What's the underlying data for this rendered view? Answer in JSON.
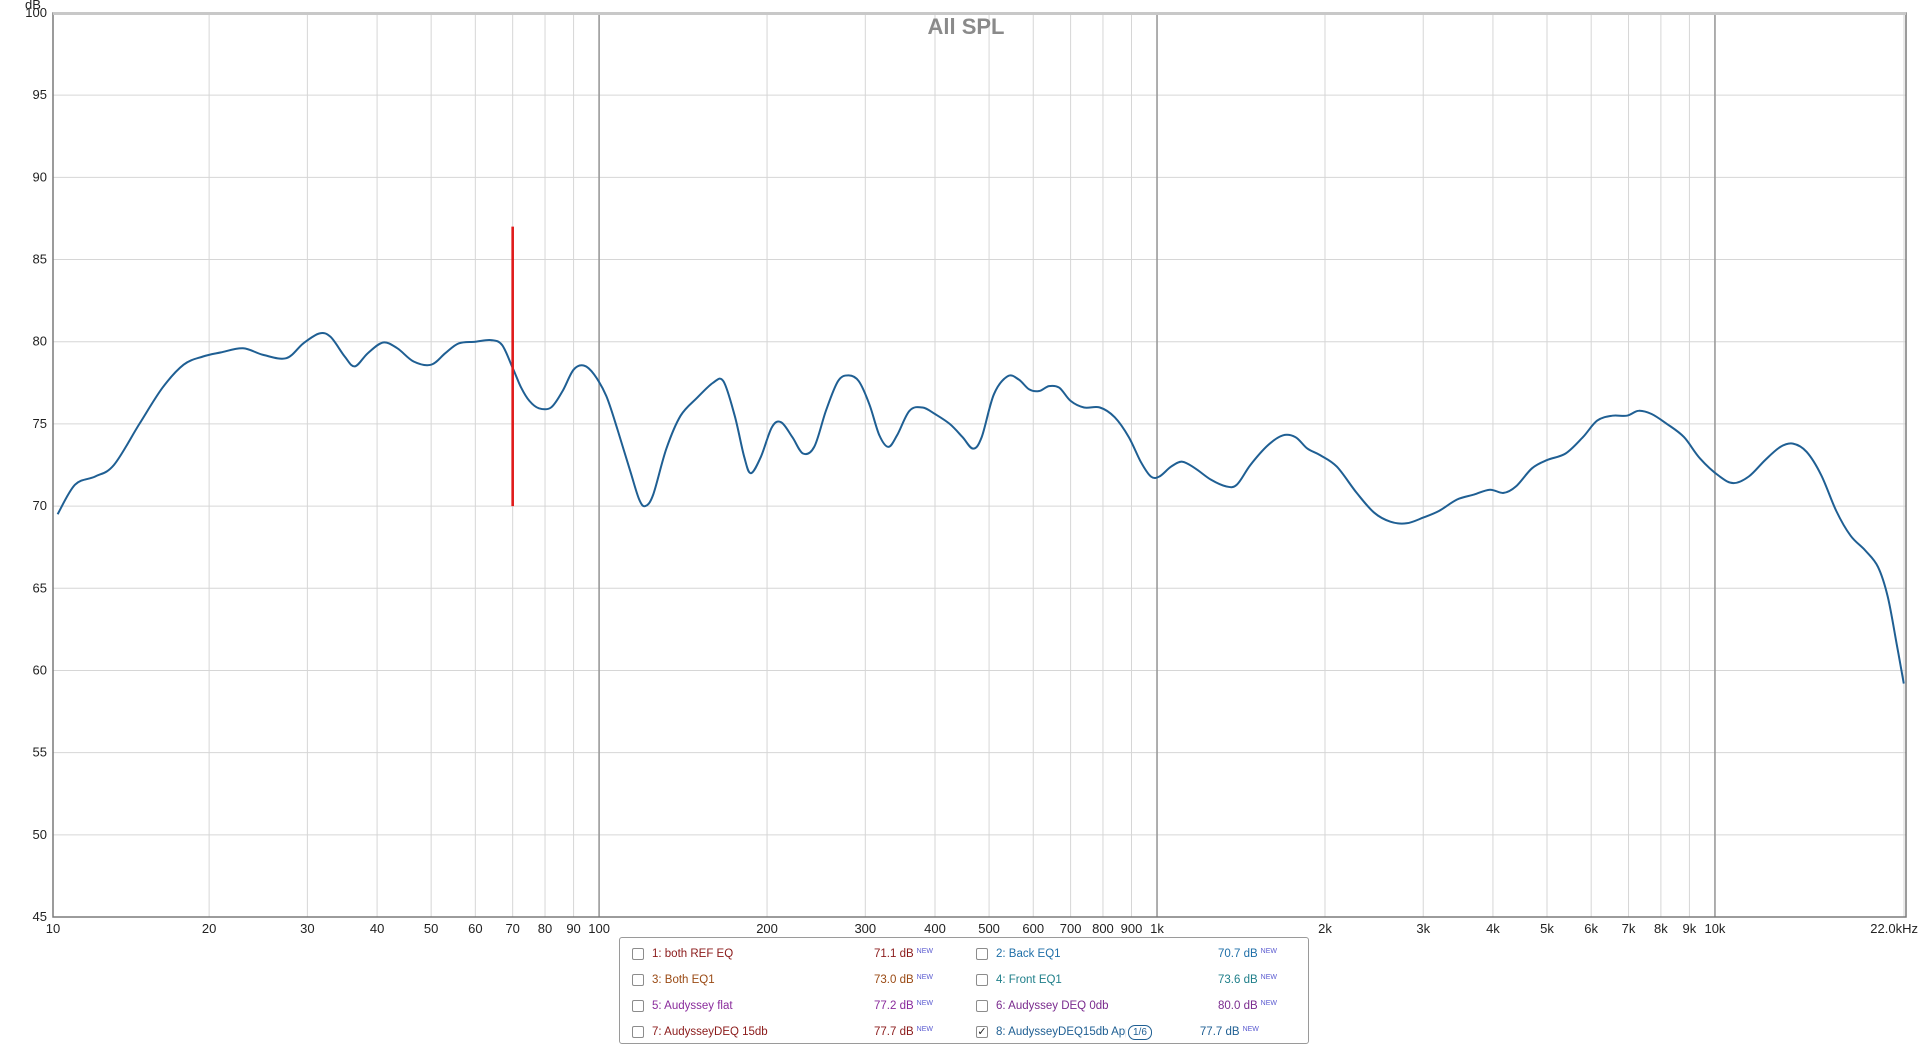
{
  "chart_data": {
    "type": "line",
    "title": "All SPL",
    "ylabel": "dB",
    "xlabel": "",
    "x_scale": "log",
    "xlim": [
      10.5,
      22000
    ],
    "ylim": [
      45,
      100
    ],
    "grid": true,
    "y_ticks": [
      45,
      50,
      55,
      60,
      65,
      70,
      75,
      80,
      85,
      90,
      95,
      100
    ],
    "x_ticks": [
      {
        "value": 10.5,
        "label": "10"
      },
      {
        "value": 20,
        "label": "20"
      },
      {
        "value": 30,
        "label": "30"
      },
      {
        "value": 40,
        "label": "40"
      },
      {
        "value": 50,
        "label": "50"
      },
      {
        "value": 60,
        "label": "60"
      },
      {
        "value": 70,
        "label": "70"
      },
      {
        "value": 80,
        "label": "80"
      },
      {
        "value": 90,
        "label": "90"
      },
      {
        "value": 100,
        "label": "100"
      },
      {
        "value": 200,
        "label": "200"
      },
      {
        "value": 300,
        "label": "300"
      },
      {
        "value": 400,
        "label": "400"
      },
      {
        "value": 500,
        "label": "500"
      },
      {
        "value": 600,
        "label": "600"
      },
      {
        "value": 700,
        "label": "700"
      },
      {
        "value": 800,
        "label": "800"
      },
      {
        "value": 900,
        "label": "900"
      },
      {
        "value": 1000,
        "label": "1k"
      },
      {
        "value": 2000,
        "label": "2k"
      },
      {
        "value": 3000,
        "label": "3k"
      },
      {
        "value": 4000,
        "label": "4k"
      },
      {
        "value": 5000,
        "label": "5k"
      },
      {
        "value": 6000,
        "label": "6k"
      },
      {
        "value": 7000,
        "label": "7k"
      },
      {
        "value": 8000,
        "label": "8k"
      },
      {
        "value": 9000,
        "label": "9k"
      },
      {
        "value": 10000,
        "label": "10k"
      },
      {
        "value": 22000,
        "label": "22.0kHz"
      }
    ],
    "major_x_gridlines": [
      100,
      1000,
      10000
    ],
    "marker": {
      "x": 70,
      "y_from": 70,
      "y_to": 87,
      "color": "#e01b1b"
    },
    "series": [
      {
        "name": "8: AudysseyDEQ15db App",
        "color": "#1f5f93",
        "points": [
          [
            10.7,
            69.5
          ],
          [
            11.5,
            71.3
          ],
          [
            12.5,
            71.8
          ],
          [
            13.5,
            72.5
          ],
          [
            15,
            75.0
          ],
          [
            16.5,
            77.2
          ],
          [
            18,
            78.6
          ],
          [
            19.5,
            79.1
          ],
          [
            21,
            79.35
          ],
          [
            23,
            79.6
          ],
          [
            25,
            79.2
          ],
          [
            27.5,
            79.0
          ],
          [
            29.5,
            79.9
          ],
          [
            31.5,
            80.5
          ],
          [
            33,
            80.3
          ],
          [
            35,
            79.1
          ],
          [
            36.5,
            78.5
          ],
          [
            38.5,
            79.3
          ],
          [
            41,
            79.95
          ],
          [
            43.5,
            79.6
          ],
          [
            46.5,
            78.8
          ],
          [
            50,
            78.6
          ],
          [
            53,
            79.3
          ],
          [
            56,
            79.9
          ],
          [
            60,
            80.0
          ],
          [
            64,
            80.1
          ],
          [
            67,
            79.8
          ],
          [
            70,
            78.4
          ],
          [
            72.5,
            77.2
          ],
          [
            75,
            76.4
          ],
          [
            78,
            75.95
          ],
          [
            82,
            76.0
          ],
          [
            86,
            77.0
          ],
          [
            90,
            78.3
          ],
          [
            94,
            78.55
          ],
          [
            98,
            78.0
          ],
          [
            103,
            76.7
          ],
          [
            108,
            74.6
          ],
          [
            114,
            72.0
          ],
          [
            118,
            70.4
          ],
          [
            121,
            70.0
          ],
          [
            125,
            70.7
          ],
          [
            132,
            73.5
          ],
          [
            140,
            75.5
          ],
          [
            150,
            76.6
          ],
          [
            160,
            77.5
          ],
          [
            167,
            77.6
          ],
          [
            175,
            75.5
          ],
          [
            182,
            73.0
          ],
          [
            187,
            72.0
          ],
          [
            195,
            73.0
          ],
          [
            204,
            74.8
          ],
          [
            212,
            75.1
          ],
          [
            222,
            74.2
          ],
          [
            232,
            73.2
          ],
          [
            243,
            73.6
          ],
          [
            255,
            75.8
          ],
          [
            268,
            77.6
          ],
          [
            280,
            77.95
          ],
          [
            292,
            77.6
          ],
          [
            305,
            76.2
          ],
          [
            318,
            74.3
          ],
          [
            330,
            73.6
          ],
          [
            342,
            74.3
          ],
          [
            360,
            75.8
          ],
          [
            380,
            76.0
          ],
          [
            400,
            75.6
          ],
          [
            425,
            75.0
          ],
          [
            448,
            74.2
          ],
          [
            468,
            73.5
          ],
          [
            485,
            74.2
          ],
          [
            510,
            76.8
          ],
          [
            540,
            77.9
          ],
          [
            565,
            77.7
          ],
          [
            590,
            77.1
          ],
          [
            615,
            77.0
          ],
          [
            640,
            77.3
          ],
          [
            668,
            77.2
          ],
          [
            700,
            76.4
          ],
          [
            740,
            76.0
          ],
          [
            790,
            76.0
          ],
          [
            840,
            75.4
          ],
          [
            890,
            74.2
          ],
          [
            935,
            72.7
          ],
          [
            975,
            71.8
          ],
          [
            1010,
            71.8
          ],
          [
            1060,
            72.4
          ],
          [
            1110,
            72.7
          ],
          [
            1170,
            72.3
          ],
          [
            1250,
            71.6
          ],
          [
            1330,
            71.2
          ],
          [
            1390,
            71.3
          ],
          [
            1470,
            72.5
          ],
          [
            1580,
            73.7
          ],
          [
            1680,
            74.3
          ],
          [
            1770,
            74.2
          ],
          [
            1860,
            73.5
          ],
          [
            1960,
            73.1
          ],
          [
            2100,
            72.4
          ],
          [
            2280,
            70.8
          ],
          [
            2450,
            69.6
          ],
          [
            2620,
            69.05
          ],
          [
            2800,
            68.95
          ],
          [
            3000,
            69.3
          ],
          [
            3200,
            69.7
          ],
          [
            3450,
            70.4
          ],
          [
            3700,
            70.7
          ],
          [
            3950,
            71.0
          ],
          [
            4180,
            70.8
          ],
          [
            4400,
            71.2
          ],
          [
            4700,
            72.3
          ],
          [
            5000,
            72.8
          ],
          [
            5400,
            73.2
          ],
          [
            5800,
            74.2
          ],
          [
            6150,
            75.2
          ],
          [
            6550,
            75.5
          ],
          [
            6950,
            75.5
          ],
          [
            7300,
            75.8
          ],
          [
            7700,
            75.6
          ],
          [
            8200,
            75.0
          ],
          [
            8800,
            74.2
          ],
          [
            9400,
            72.9
          ],
          [
            10200,
            71.8
          ],
          [
            10800,
            71.4
          ],
          [
            11500,
            71.8
          ],
          [
            12300,
            72.8
          ],
          [
            13100,
            73.6
          ],
          [
            13800,
            73.8
          ],
          [
            14600,
            73.3
          ],
          [
            15500,
            71.9
          ],
          [
            16500,
            69.7
          ],
          [
            17500,
            68.2
          ],
          [
            18600,
            67.3
          ],
          [
            19600,
            66.3
          ],
          [
            20400,
            64.5
          ],
          [
            21200,
            61.5
          ],
          [
            21800,
            59.2
          ]
        ]
      }
    ]
  },
  "legend": {
    "items": [
      {
        "label": "1: both REF EQ",
        "value": "71.1 dB",
        "badge": "NEW",
        "checked": false,
        "color": "#8b1a1a"
      },
      {
        "label": "2: Back EQ1",
        "value": "70.7 dB",
        "badge": "NEW",
        "checked": false,
        "color": "#1f6fa8"
      },
      {
        "label": "3: Both EQ1",
        "value": "73.0 dB",
        "badge": "NEW",
        "checked": false,
        "color": "#9a4a14"
      },
      {
        "label": "4: Front EQ1",
        "value": "73.6 dB",
        "badge": "NEW",
        "checked": false,
        "color": "#1f7f8a"
      },
      {
        "label": "5: Audyssey flat",
        "value": "77.2 dB",
        "badge": "NEW",
        "checked": false,
        "color": "#8a2b9c"
      },
      {
        "label": "6: Audyssey DEQ 0db",
        "value": "80.0 dB",
        "badge": "NEW",
        "checked": false,
        "color": "#7a2b8e"
      },
      {
        "label": "7: AudysseyDEQ 15db",
        "value": "77.7 dB",
        "badge": "NEW",
        "checked": false,
        "color": "#8b1a1a"
      },
      {
        "label": "8: AudysseyDEQ15db App",
        "value": "77.7 dB",
        "badge": "NEW",
        "checked": true,
        "color": "#1f5f93",
        "smoothing": "1/6"
      }
    ],
    "check_mark": "✓"
  }
}
